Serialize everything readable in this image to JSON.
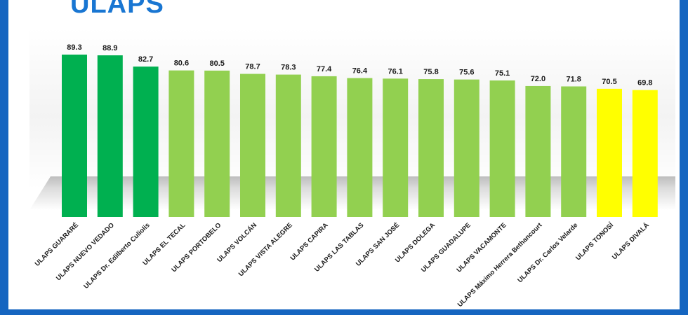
{
  "title": "ULAPS",
  "colors": {
    "frame": "#1565c0",
    "title": "#1976d2",
    "dark_green": "#00b050",
    "light_green": "#92d050",
    "yellow": "#ffff00"
  },
  "chart_data": {
    "type": "bar",
    "title": "ULAPS",
    "xlabel": "",
    "ylabel": "",
    "grid": false,
    "categories": [
      "ULAPS GUARARÉ",
      "ULAPS NUEVO VEDADO",
      "ULAPS Dr. Edilberto Culiolis",
      "ULAPS EL TECAL",
      "ULAPS PORTOBELO",
      "ULAPS VOLCÁN",
      "ULAPS VISTA ALEGRE",
      "ULAPS CAPIRA",
      "ULAPS LAS TABLAS",
      "ULAPS SAN JOSÉ",
      "ULAPS DOLEGA",
      "ULAPS GUADALUPE",
      "ULAPS VACAMONTE",
      "ULAPS Máximo Herrera Bethancourt",
      "ULAPS Dr. Carlos Velarde",
      "ULAPS TONOSÍ",
      "ULAPS DIVALÁ"
    ],
    "values": [
      89.3,
      88.9,
      82.7,
      80.6,
      80.5,
      78.7,
      78.3,
      77.4,
      76.4,
      76.1,
      75.8,
      75.6,
      75.1,
      72.0,
      71.8,
      70.5,
      69.8
    ],
    "value_labels": [
      "89.3",
      "88.9",
      "82.7",
      "80.6",
      "80.5",
      "78.7",
      "78.3",
      "77.4",
      "76.4",
      "76.1",
      "75.8",
      "75.6",
      "75.1",
      "72.0",
      "71.8",
      "70.5",
      "69.8"
    ],
    "bar_colors": [
      "#00b050",
      "#00b050",
      "#00b050",
      "#92d050",
      "#92d050",
      "#92d050",
      "#92d050",
      "#92d050",
      "#92d050",
      "#92d050",
      "#92d050",
      "#92d050",
      "#92d050",
      "#92d050",
      "#92d050",
      "#ffff00",
      "#ffff00"
    ],
    "ylim": [
      0,
      90
    ]
  }
}
